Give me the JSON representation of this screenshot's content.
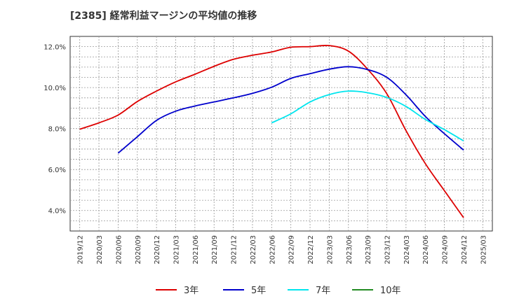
{
  "chart_data": {
    "type": "line",
    "title": "[2385]  経常利益マージンの平均値の推移",
    "xlabel": "",
    "ylabel": "",
    "ylim": [
      3.0,
      12.5
    ],
    "yticks": [
      4.0,
      6.0,
      8.0,
      10.0,
      12.0
    ],
    "ytick_labels": [
      "4.0%",
      "6.0%",
      "8.0%",
      "10.0%",
      "12.0%"
    ],
    "x_categories": [
      "2019/12",
      "2020/03",
      "2020/06",
      "2020/09",
      "2020/12",
      "2021/03",
      "2021/06",
      "2021/09",
      "2021/12",
      "2022/03",
      "2022/06",
      "2022/09",
      "2022/12",
      "2023/03",
      "2023/06",
      "2023/09",
      "2023/12",
      "2024/03",
      "2024/06",
      "2024/09",
      "2024/12",
      "2025/03"
    ],
    "grid": true,
    "legend_position": "bottom",
    "series": [
      {
        "name": "3年",
        "color": "#dd0000",
        "values": [
          7.97,
          8.28,
          8.66,
          9.32,
          9.83,
          10.28,
          10.65,
          11.04,
          11.38,
          11.58,
          11.74,
          11.97,
          12.0,
          12.05,
          11.78,
          10.9,
          9.7,
          7.9,
          6.3,
          4.97,
          3.65,
          null
        ]
      },
      {
        "name": "5年",
        "color": "#0000cc",
        "values": [
          null,
          null,
          6.8,
          7.6,
          8.4,
          8.85,
          9.1,
          9.3,
          9.5,
          9.72,
          10.02,
          10.45,
          10.68,
          10.9,
          11.02,
          10.88,
          10.5,
          9.65,
          8.6,
          7.75,
          6.95,
          null
        ]
      },
      {
        "name": "7年",
        "color": "#00e5ee",
        "values": [
          null,
          null,
          null,
          null,
          null,
          null,
          null,
          null,
          null,
          null,
          8.28,
          8.72,
          9.3,
          9.66,
          9.83,
          9.75,
          9.52,
          9.08,
          8.45,
          7.95,
          7.4,
          null
        ]
      },
      {
        "name": "10年",
        "color": "#228b22",
        "values": [
          null,
          null,
          null,
          null,
          null,
          null,
          null,
          null,
          null,
          null,
          null,
          null,
          null,
          null,
          null,
          null,
          null,
          null,
          null,
          null,
          null,
          null
        ]
      }
    ]
  }
}
